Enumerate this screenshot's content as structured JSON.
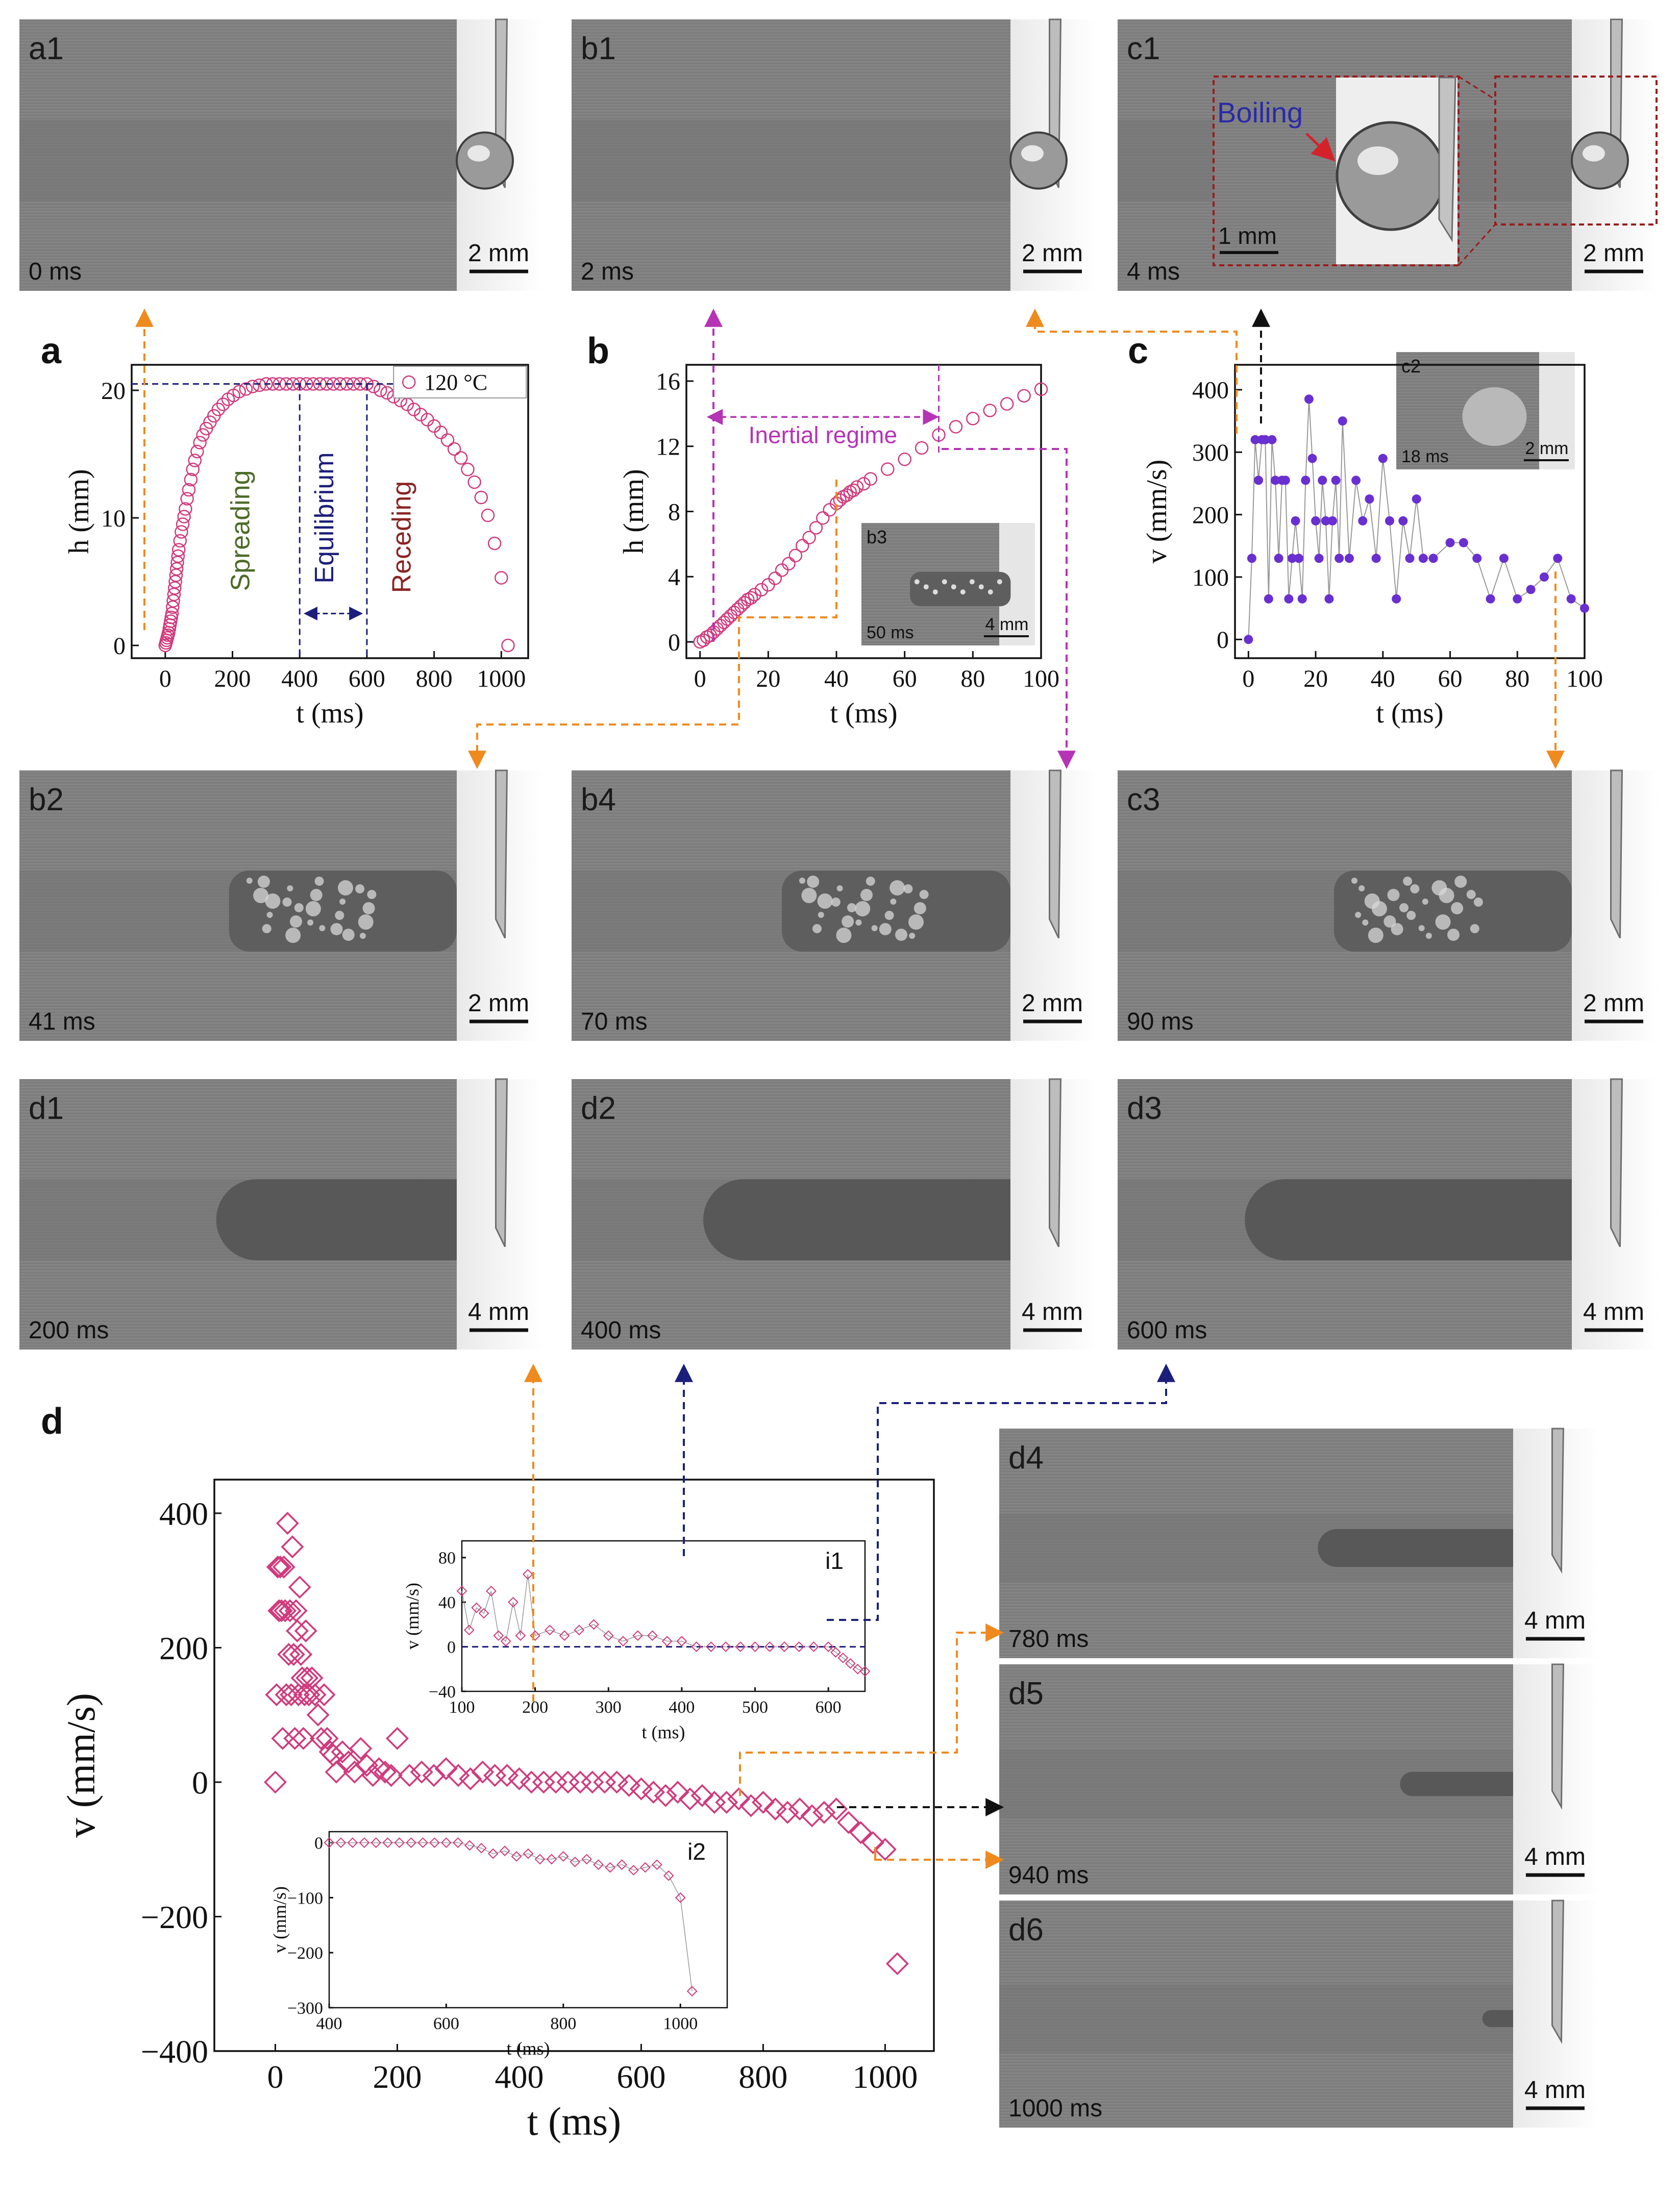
{
  "panels": [
    {
      "id": "a1",
      "label": "a1",
      "time": "0 ms",
      "scale": "2 mm",
      "kind": "droplet"
    },
    {
      "id": "b1",
      "label": "b1",
      "time": "2 ms",
      "scale": "2 mm",
      "kind": "droplet"
    },
    {
      "id": "c1",
      "label": "c1",
      "time": "4 ms",
      "scale": "2 mm",
      "kind": "droplet"
    },
    {
      "id": "b2",
      "label": "b2",
      "time": "41 ms",
      "scale": "2 mm",
      "kind": "splash"
    },
    {
      "id": "b4",
      "label": "b4",
      "time": "70 ms",
      "scale": "2 mm",
      "kind": "splash"
    },
    {
      "id": "c3",
      "label": "c3",
      "time": "90 ms",
      "scale": "2 mm",
      "kind": "splash"
    },
    {
      "id": "d1",
      "label": "d1",
      "time": "200 ms",
      "scale": "4 mm",
      "kind": "film"
    },
    {
      "id": "d2",
      "label": "d2",
      "time": "400 ms",
      "scale": "4 mm",
      "kind": "film"
    },
    {
      "id": "d3",
      "label": "d3",
      "time": "600 ms",
      "scale": "4 mm",
      "kind": "film"
    },
    {
      "id": "d4",
      "label": "d4",
      "time": "780 ms",
      "scale": "4 mm",
      "kind": "film"
    },
    {
      "id": "d5",
      "label": "d5",
      "time": "940 ms",
      "scale": "4 mm",
      "kind": "film"
    },
    {
      "id": "d6",
      "label": "d6",
      "time": "1000 ms",
      "scale": "4 mm",
      "kind": "film"
    }
  ],
  "insets": {
    "c1_zoom": {
      "annotation": "Boiling",
      "scale": "1 mm"
    },
    "b3": {
      "label": "b3",
      "time": "50 ms",
      "scale": "4 mm"
    },
    "c2": {
      "label": "c2",
      "time": "18 ms",
      "scale": "2 mm"
    }
  },
  "colors": {
    "pink": "#d03a7c",
    "purple": "#6a2fd0",
    "magenta": "#b533b5",
    "orange": "#ef8a1e",
    "navy": "#1c1f7a",
    "dark_red": "#9b1b1b"
  },
  "chart_data": [
    {
      "id": "a",
      "panel_letter": "a",
      "type": "scatter",
      "xlabel": "t (ms)",
      "ylabel": "h (mm)",
      "xlim": [
        -100,
        1080
      ],
      "ylim": [
        -1,
        22
      ],
      "xticks": [
        0,
        200,
        400,
        600,
        800,
        1000
      ],
      "yticks": [
        0,
        10,
        20
      ],
      "legend": "120 °C",
      "legend_position": "top-right",
      "region_labels": [
        "Spreading",
        "Equilibrium",
        "Receding"
      ],
      "equilibrium_range": [
        400,
        600
      ],
      "plateau": 20.5,
      "x": [
        0,
        2,
        4,
        6,
        8,
        10,
        12,
        14,
        16,
        18,
        20,
        22,
        24,
        26,
        28,
        30,
        32,
        34,
        36,
        38,
        40,
        44,
        48,
        52,
        56,
        60,
        65,
        70,
        76,
        82,
        88,
        95,
        103,
        112,
        122,
        133,
        145,
        158,
        172,
        187,
        203,
        220,
        240,
        260,
        280,
        300,
        320,
        340,
        360,
        380,
        400,
        420,
        440,
        460,
        480,
        500,
        520,
        540,
        560,
        580,
        600,
        620,
        640,
        660,
        680,
        700,
        720,
        740,
        760,
        780,
        800,
        820,
        840,
        860,
        880,
        900,
        920,
        940,
        960,
        980,
        1000,
        1020
      ],
      "y": [
        0.0,
        0.2,
        0.4,
        0.6,
        0.8,
        1.0,
        1.3,
        1.6,
        1.9,
        2.2,
        2.5,
        3.0,
        3.5,
        4.0,
        4.5,
        5.0,
        5.5,
        6.0,
        6.5,
        7.0,
        7.5,
        8.2,
        8.9,
        9.5,
        10.1,
        10.7,
        11.5,
        12.2,
        13.0,
        13.8,
        14.5,
        15.2,
        15.9,
        16.5,
        17.0,
        17.5,
        18.0,
        18.5,
        18.9,
        19.3,
        19.6,
        19.9,
        20.1,
        20.3,
        20.4,
        20.5,
        20.5,
        20.5,
        20.5,
        20.5,
        20.5,
        20.5,
        20.5,
        20.5,
        20.5,
        20.5,
        20.5,
        20.5,
        20.5,
        20.5,
        20.5,
        20.3,
        20.0,
        19.8,
        19.5,
        19.2,
        18.9,
        18.5,
        18.1,
        17.7,
        17.2,
        16.7,
        16.1,
        15.4,
        14.7,
        13.8,
        12.8,
        11.6,
        10.2,
        8.0,
        5.3,
        0.0
      ]
    },
    {
      "id": "b",
      "panel_letter": "b",
      "type": "scatter",
      "xlabel": "t (ms)",
      "ylabel": "h (mm)",
      "xlim": [
        -4,
        100
      ],
      "ylim": [
        -1,
        17
      ],
      "xticks": [
        0,
        20,
        40,
        60,
        80,
        100
      ],
      "yticks": [
        0,
        4,
        8,
        12,
        16
      ],
      "annotation": "Inertial regime",
      "inertial_range": [
        2,
        70
      ],
      "x": [
        0,
        1,
        2,
        3,
        4,
        5,
        6,
        7,
        8,
        9,
        10,
        11,
        12,
        13,
        14,
        15,
        16,
        18,
        20,
        22,
        24,
        26,
        28,
        30,
        32,
        34,
        36,
        38,
        40,
        41,
        42,
        43,
        44,
        45,
        46,
        48,
        50,
        55,
        60,
        65,
        70,
        75,
        80,
        85,
        90,
        95,
        100
      ],
      "y": [
        0.0,
        0.1,
        0.3,
        0.4,
        0.6,
        0.8,
        1.0,
        1.2,
        1.4,
        1.6,
        1.8,
        2.0,
        2.2,
        2.4,
        2.6,
        2.7,
        2.9,
        3.2,
        3.5,
        3.9,
        4.4,
        4.8,
        5.3,
        5.9,
        6.4,
        7.0,
        7.6,
        8.1,
        8.5,
        8.7,
        8.9,
        9.0,
        9.2,
        9.3,
        9.5,
        9.7,
        10.0,
        10.6,
        11.2,
        11.9,
        12.7,
        13.2,
        13.7,
        14.2,
        14.6,
        15.1,
        15.5
      ]
    },
    {
      "id": "c",
      "panel_letter": "c",
      "type": "line",
      "xlabel": "t (ms)",
      "ylabel": "v (mm/s)",
      "xlim": [
        -4,
        100
      ],
      "ylim": [
        -30,
        440
      ],
      "xticks": [
        0,
        20,
        40,
        60,
        80,
        100
      ],
      "yticks": [
        0,
        100,
        200,
        300,
        400
      ],
      "x": [
        0,
        1,
        2,
        3,
        4,
        5,
        6,
        7,
        8,
        9,
        10,
        11,
        12,
        13,
        14,
        15,
        16,
        17,
        18,
        19,
        20,
        21,
        22,
        23,
        24,
        25,
        26,
        27,
        28,
        30,
        32,
        34,
        36,
        38,
        40,
        42,
        44,
        46,
        48,
        50,
        52,
        55,
        60,
        64,
        68,
        72,
        76,
        80,
        84,
        88,
        92,
        96,
        100
      ],
      "y": [
        0,
        130,
        320,
        255,
        320,
        320,
        65,
        320,
        255,
        130,
        255,
        255,
        65,
        130,
        190,
        130,
        65,
        255,
        385,
        290,
        190,
        130,
        255,
        190,
        65,
        190,
        255,
        130,
        350,
        130,
        255,
        190,
        225,
        130,
        290,
        190,
        65,
        190,
        130,
        225,
        130,
        130,
        155,
        155,
        130,
        65,
        130,
        65,
        80,
        100,
        130,
        65,
        50
      ]
    },
    {
      "id": "d",
      "panel_letter": "d",
      "type": "scatter",
      "xlabel": "t (ms)",
      "ylabel": "v (mm/s)",
      "xlim": [
        -100,
        1080
      ],
      "ylim": [
        -400,
        450
      ],
      "xticks": [
        0,
        200,
        400,
        600,
        800,
        1000
      ],
      "yticks": [
        -400,
        -200,
        0,
        200,
        400
      ],
      "x": [
        0,
        2,
        4,
        6,
        8,
        10,
        12,
        14,
        16,
        18,
        20,
        22,
        24,
        26,
        28,
        30,
        32,
        34,
        36,
        38,
        40,
        42,
        44,
        46,
        48,
        50,
        52,
        55,
        60,
        65,
        70,
        75,
        80,
        85,
        90,
        95,
        100,
        110,
        120,
        130,
        140,
        150,
        160,
        170,
        180,
        190,
        200,
        220,
        240,
        260,
        280,
        300,
        320,
        340,
        360,
        380,
        400,
        420,
        440,
        460,
        480,
        500,
        520,
        540,
        560,
        580,
        600,
        620,
        640,
        660,
        680,
        700,
        720,
        740,
        760,
        780,
        800,
        820,
        840,
        860,
        880,
        900,
        920,
        940,
        960,
        980,
        1000,
        1020
      ],
      "y": [
        0,
        130,
        320,
        255,
        320,
        255,
        65,
        320,
        255,
        130,
        385,
        190,
        255,
        130,
        350,
        190,
        65,
        255,
        225,
        130,
        290,
        190,
        155,
        65,
        130,
        225,
        155,
        130,
        155,
        130,
        100,
        65,
        130,
        65,
        45,
        40,
        15,
        45,
        30,
        15,
        50,
        25,
        10,
        20,
        15,
        10,
        65,
        10,
        15,
        10,
        20,
        10,
        5,
        15,
        10,
        10,
        5,
        0,
        0,
        0,
        0,
        0,
        0,
        0,
        0,
        -5,
        -10,
        -15,
        -20,
        -15,
        -25,
        -20,
        -30,
        -30,
        -25,
        -35,
        -30,
        -40,
        -45,
        -40,
        -50,
        -45,
        -40,
        -60,
        -75,
        -90,
        -100,
        -270
      ]
    },
    {
      "id": "i1",
      "panel_letter": "i1",
      "type": "line",
      "xlabel": "t (ms)",
      "ylabel": "v (mm/s)",
      "xlim": [
        100,
        650
      ],
      "ylim": [
        -40,
        95
      ],
      "xticks": [
        100,
        200,
        300,
        400,
        500,
        600
      ],
      "yticks": [
        -40,
        0,
        40,
        80
      ],
      "x": [
        100,
        110,
        120,
        130,
        140,
        150,
        160,
        170,
        180,
        190,
        200,
        220,
        240,
        260,
        280,
        300,
        320,
        340,
        360,
        380,
        400,
        420,
        440,
        460,
        480,
        500,
        520,
        540,
        560,
        580,
        600,
        610,
        620,
        630,
        640,
        650
      ],
      "y": [
        50,
        15,
        35,
        30,
        50,
        10,
        5,
        40,
        10,
        65,
        10,
        15,
        10,
        15,
        20,
        10,
        5,
        10,
        10,
        5,
        5,
        0,
        0,
        0,
        0,
        0,
        0,
        0,
        0,
        0,
        0,
        -5,
        -10,
        -15,
        -20,
        -22
      ]
    },
    {
      "id": "i2",
      "panel_letter": "i2",
      "type": "line",
      "xlabel": "t (ms)",
      "ylabel": "v (mm/s)",
      "xlim": [
        400,
        1080
      ],
      "ylim": [
        -300,
        20
      ],
      "xticks": [
        400,
        600,
        800,
        1000
      ],
      "yticks": [
        -300,
        -200,
        -100,
        0
      ],
      "x": [
        400,
        420,
        440,
        460,
        480,
        500,
        520,
        540,
        560,
        580,
        600,
        620,
        640,
        660,
        680,
        700,
        720,
        740,
        760,
        780,
        800,
        820,
        840,
        860,
        880,
        900,
        920,
        940,
        960,
        980,
        1000,
        1020
      ],
      "y": [
        0,
        0,
        0,
        0,
        0,
        0,
        0,
        0,
        0,
        0,
        0,
        0,
        -5,
        -10,
        -20,
        -15,
        -25,
        -20,
        -30,
        -30,
        -25,
        -35,
        -30,
        -40,
        -45,
        -40,
        -50,
        -45,
        -40,
        -60,
        -100,
        -270
      ]
    }
  ]
}
